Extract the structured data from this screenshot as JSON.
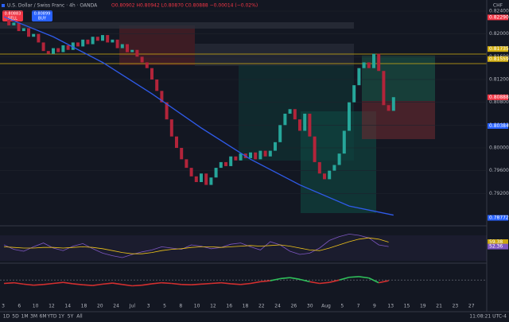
{
  "header": {
    "symbol": "U.S. Dollar / Swiss Franc · 4h · OANDA",
    "ohlc": "O0.80902 H0.80942 L0.80870 C0.80888 −0.00014 (−0.02%)",
    "sell": {
      "price": "0.80883",
      "label": "SELL"
    },
    "buy": {
      "price": "0.80899",
      "label": "BUY"
    }
  },
  "chart_data": {
    "type": "candlestick",
    "currency": "CHF",
    "up_color": "#26a69a",
    "down_color": "#b2243a",
    "closes": [
      0.8225,
      0.8215,
      0.822,
      0.8205,
      0.821,
      0.8195,
      0.82,
      0.8185,
      0.817,
      0.8165,
      0.8175,
      0.8168,
      0.818,
      0.8172,
      0.8185,
      0.8178,
      0.819,
      0.8182,
      0.8195,
      0.8188,
      0.8198,
      0.8185,
      0.819,
      0.8175,
      0.8182,
      0.8168,
      0.8172,
      0.816,
      0.815,
      0.814,
      0.812,
      0.81,
      0.808,
      0.805,
      0.802,
      0.8,
      0.798,
      0.7965,
      0.795,
      0.794,
      0.7955,
      0.7935,
      0.7948,
      0.7965,
      0.7975,
      0.7968,
      0.7985,
      0.7978,
      0.799,
      0.7982,
      0.7992,
      0.798,
      0.7995,
      0.7985,
      0.7995,
      0.801,
      0.804,
      0.806,
      0.8068,
      0.805,
      0.803,
      0.806,
      0.802,
      0.7975,
      0.7955,
      0.7945,
      0.796,
      0.797,
      0.799,
      0.803,
      0.808,
      0.811,
      0.814,
      0.815,
      0.814,
      0.8165,
      0.8135,
      0.8075,
      0.8065,
      0.8089
    ],
    "ma": {
      "color": "#2f5bea",
      "x": [
        0,
        10,
        20,
        30,
        40,
        50,
        60,
        70,
        79
      ],
      "values": [
        0.823,
        0.8195,
        0.815,
        0.8095,
        0.8035,
        0.798,
        0.7935,
        0.7898,
        0.7882
      ]
    },
    "ylim": [
      0.788,
      0.824
    ],
    "yticks": [
      {
        "value": 0.824,
        "label": "0.82400"
      },
      {
        "value": 0.82,
        "label": "0.82000"
      },
      {
        "value": 0.816,
        "label": "0.81600"
      },
      {
        "value": 0.812,
        "label": "0.81200"
      },
      {
        "value": 0.808,
        "label": "0.80800"
      },
      {
        "value": 0.804,
        "label": "0.80400"
      },
      {
        "value": 0.8,
        "label": "0.80000"
      },
      {
        "value": 0.796,
        "label": "0.79600"
      },
      {
        "value": 0.792,
        "label": "0.79200"
      }
    ],
    "price_tags": [
      {
        "value": 0.8229,
        "label": "0.82290",
        "color": "#f23645"
      },
      {
        "value": 0.81735,
        "label": "0.81735",
        "color": "#d4b012"
      },
      {
        "value": 0.81559,
        "label": "0.81559",
        "color": "#d4b012"
      },
      {
        "value": 0.80888,
        "label": "0.80888",
        "color": "#f23645"
      },
      {
        "value": 0.80384,
        "label": "0.80384",
        "color": "#2962ff"
      },
      {
        "value": 0.78772,
        "label": "0.78772",
        "color": "#2962ff"
      }
    ],
    "x_labels": [
      "3",
      "6",
      "10",
      "12",
      "14",
      "18",
      "20",
      "24",
      "Jul",
      "3",
      "5",
      "8",
      "10",
      "12",
      "16",
      "18",
      "22",
      "24",
      "26",
      "30",
      "Aug",
      "5",
      "7",
      "9",
      "13",
      "15",
      "19",
      "21",
      "23",
      "27"
    ],
    "rsi": {
      "color": "#7e57c2",
      "ma_color": "#f0c419",
      "ylim": [
        30,
        80
      ],
      "values": [
        55,
        48,
        45,
        52,
        58,
        50,
        46,
        53,
        57,
        49,
        42,
        38,
        35,
        40,
        44,
        47,
        52,
        50,
        48,
        55,
        53,
        49,
        51,
        56,
        58,
        52,
        47,
        60,
        55,
        45,
        40,
        42,
        50,
        62,
        68,
        72,
        70,
        66,
        55,
        52.36
      ],
      "ma": [
        52,
        51,
        50,
        50,
        51,
        51,
        50,
        51,
        52,
        51,
        49,
        46,
        43,
        41,
        41,
        43,
        46,
        48,
        49,
        51,
        52,
        52,
        51,
        52,
        53,
        54,
        53,
        54,
        55,
        53,
        50,
        47,
        46,
        50,
        55,
        60,
        64,
        66,
        64,
        59.38
      ],
      "tags": [
        {
          "value": 59.38,
          "label": "59.38",
          "color": "#c9a50f"
        },
        {
          "value": 52.36,
          "label": "52.36",
          "color": "#7e57c2"
        }
      ]
    },
    "osc": {
      "color": "#d32f2f",
      "high_color": "#2fbf5a",
      "ylim": [
        0,
        100
      ],
      "level": 60,
      "values": [
        50,
        52,
        48,
        45,
        47,
        50,
        53,
        49,
        46,
        44,
        48,
        51,
        47,
        43,
        45,
        49,
        52,
        50,
        47,
        46,
        48,
        50,
        52,
        49,
        47,
        50,
        55,
        58,
        64,
        67,
        62,
        55,
        50,
        53,
        60,
        68,
        70,
        66,
        52,
        58
      ]
    }
  },
  "toolbar": {
    "ranges": [
      "1D",
      "5D",
      "1M",
      "3M",
      "6M",
      "YTD",
      "1Y",
      "5Y",
      "All"
    ],
    "time": "11:08:21 UTC-4"
  }
}
